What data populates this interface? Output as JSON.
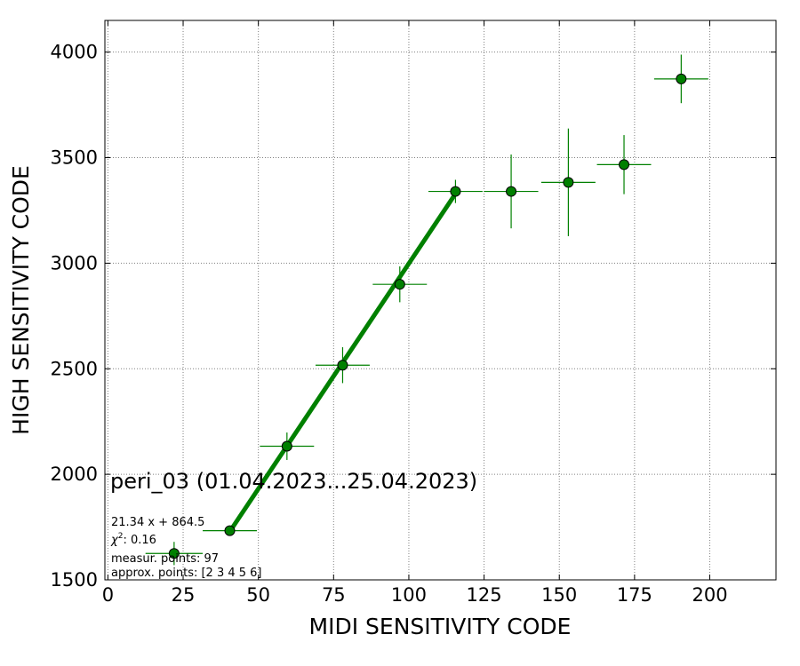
{
  "chart_data": {
    "type": "scatter",
    "xlabel": "MIDI SENSITIVITY CODE",
    "ylabel": "HIGH SENSITIVITY CODE",
    "xlim": [
      -1,
      222
    ],
    "ylim": [
      1500,
      4150
    ],
    "xticks": [
      0,
      25,
      50,
      75,
      100,
      125,
      150,
      175,
      200
    ],
    "yticks": [
      1500,
      2000,
      2500,
      3000,
      3500,
      4000
    ],
    "grid": true,
    "colors": {
      "points": "#008000",
      "errorbars": "#008000",
      "fit_line": "#008000",
      "grid": "#808080"
    },
    "points": [
      {
        "x": 22.0,
        "y": 1625,
        "xerr": 9.5,
        "yerr": 55
      },
      {
        "x": 40.5,
        "y": 1733,
        "xerr": 9.0,
        "yerr": 0
      },
      {
        "x": 59.5,
        "y": 2133,
        "xerr": 9.0,
        "yerr": 65
      },
      {
        "x": 78.0,
        "y": 2517,
        "xerr": 9.0,
        "yerr": 85
      },
      {
        "x": 97.0,
        "y": 2900,
        "xerr": 9.0,
        "yerr": 85
      },
      {
        "x": 115.5,
        "y": 3340,
        "xerr": 9.0,
        "yerr": 55
      },
      {
        "x": 134.0,
        "y": 3340,
        "xerr": 9.0,
        "yerr": 175
      },
      {
        "x": 153.0,
        "y": 3383,
        "xerr": 9.0,
        "yerr": 255
      },
      {
        "x": 171.5,
        "y": 3467,
        "xerr": 9.0,
        "yerr": 140
      },
      {
        "x": 190.5,
        "y": 3873,
        "xerr": 9.0,
        "yerr": 115
      }
    ],
    "fit": {
      "slope": 21.34,
      "intercept": 864.5,
      "x_range": [
        40.5,
        115.5
      ]
    },
    "annotations": {
      "title": "peri_03 (01.04.2023...25.04.2023)",
      "equation": "21.34 x + 864.5",
      "chi2_label": "χ",
      "chi2_sup": "2",
      "chi2_value": ": 0.16",
      "measur_points": "measur. points: 97",
      "approx_points": "approx. points: [2 3 4 5 6]"
    }
  }
}
